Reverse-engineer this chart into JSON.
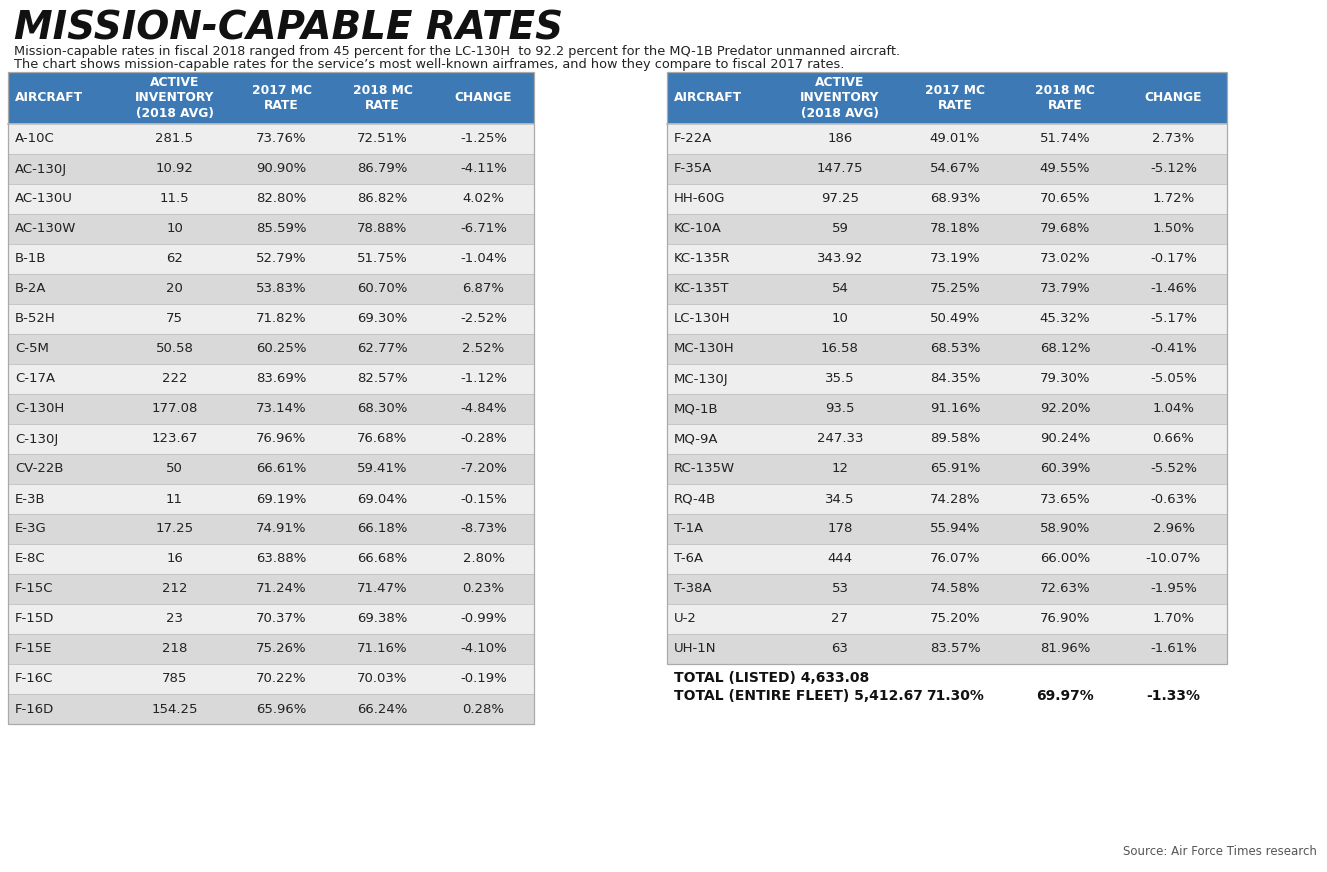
{
  "title": "MISSION-CAPABLE RATES",
  "subtitle_line1": "Mission-capable rates in fiscal 2018 ranged from 45 percent for the LC-130H  to 92.2 percent for the MQ-1B Predator unmanned aircraft.",
  "subtitle_line2": "The chart shows mission-capable rates for the service’s most well-known airframes, and how they compare to fiscal 2017 rates.",
  "source": "Source: Air Force Times research",
  "header": [
    "AIRCRAFT",
    "ACTIVE\nINVENTORY\n(2018 AVG)",
    "2017 MC\nRATE",
    "2018 MC\nRATE",
    "CHANGE"
  ],
  "left_data": [
    [
      "A-10C",
      "281.5",
      "73.76%",
      "72.51%",
      "-1.25%"
    ],
    [
      "AC-130J",
      "10.92",
      "90.90%",
      "86.79%",
      "-4.11%"
    ],
    [
      "AC-130U",
      "11.5",
      "82.80%",
      "86.82%",
      "4.02%"
    ],
    [
      "AC-130W",
      "10",
      "85.59%",
      "78.88%",
      "-6.71%"
    ],
    [
      "B-1B",
      "62",
      "52.79%",
      "51.75%",
      "-1.04%"
    ],
    [
      "B-2A",
      "20",
      "53.83%",
      "60.70%",
      "6.87%"
    ],
    [
      "B-52H",
      "75",
      "71.82%",
      "69.30%",
      "-2.52%"
    ],
    [
      "C-5M",
      "50.58",
      "60.25%",
      "62.77%",
      "2.52%"
    ],
    [
      "C-17A",
      "222",
      "83.69%",
      "82.57%",
      "-1.12%"
    ],
    [
      "C-130H",
      "177.08",
      "73.14%",
      "68.30%",
      "-4.84%"
    ],
    [
      "C-130J",
      "123.67",
      "76.96%",
      "76.68%",
      "-0.28%"
    ],
    [
      "CV-22B",
      "50",
      "66.61%",
      "59.41%",
      "-7.20%"
    ],
    [
      "E-3B",
      "11",
      "69.19%",
      "69.04%",
      "-0.15%"
    ],
    [
      "E-3G",
      "17.25",
      "74.91%",
      "66.18%",
      "-8.73%"
    ],
    [
      "E-8C",
      "16",
      "63.88%",
      "66.68%",
      "2.80%"
    ],
    [
      "F-15C",
      "212",
      "71.24%",
      "71.47%",
      "0.23%"
    ],
    [
      "F-15D",
      "23",
      "70.37%",
      "69.38%",
      "-0.99%"
    ],
    [
      "F-15E",
      "218",
      "75.26%",
      "71.16%",
      "-4.10%"
    ],
    [
      "F-16C",
      "785",
      "70.22%",
      "70.03%",
      "-0.19%"
    ],
    [
      "F-16D",
      "154.25",
      "65.96%",
      "66.24%",
      "0.28%"
    ]
  ],
  "right_data": [
    [
      "F-22A",
      "186",
      "49.01%",
      "51.74%",
      "2.73%"
    ],
    [
      "F-35A",
      "147.75",
      "54.67%",
      "49.55%",
      "-5.12%"
    ],
    [
      "HH-60G",
      "97.25",
      "68.93%",
      "70.65%",
      "1.72%"
    ],
    [
      "KC-10A",
      "59",
      "78.18%",
      "79.68%",
      "1.50%"
    ],
    [
      "KC-135R",
      "343.92",
      "73.19%",
      "73.02%",
      "-0.17%"
    ],
    [
      "KC-135T",
      "54",
      "75.25%",
      "73.79%",
      "-1.46%"
    ],
    [
      "LC-130H",
      "10",
      "50.49%",
      "45.32%",
      "-5.17%"
    ],
    [
      "MC-130H",
      "16.58",
      "68.53%",
      "68.12%",
      "-0.41%"
    ],
    [
      "MC-130J",
      "35.5",
      "84.35%",
      "79.30%",
      "-5.05%"
    ],
    [
      "MQ-1B",
      "93.5",
      "91.16%",
      "92.20%",
      "1.04%"
    ],
    [
      "MQ-9A",
      "247.33",
      "89.58%",
      "90.24%",
      "0.66%"
    ],
    [
      "RC-135W",
      "12",
      "65.91%",
      "60.39%",
      "-5.52%"
    ],
    [
      "RQ-4B",
      "34.5",
      "74.28%",
      "73.65%",
      "-0.63%"
    ],
    [
      "T-1A",
      "178",
      "55.94%",
      "58.90%",
      "2.96%"
    ],
    [
      "T-6A",
      "444",
      "76.07%",
      "66.00%",
      "-10.07%"
    ],
    [
      "T-38A",
      "53",
      "74.58%",
      "72.63%",
      "-1.95%"
    ],
    [
      "U-2",
      "27",
      "75.20%",
      "76.90%",
      "1.70%"
    ],
    [
      "UH-1N",
      "63",
      "83.57%",
      "81.96%",
      "-1.61%"
    ]
  ],
  "total_listed": "TOTAL (LISTED) 4,633.08",
  "total_fleet_label": "TOTAL (ENTIRE FLEET) 5,412.67",
  "total_fleet_2017": "71.30%",
  "total_fleet_2018": "69.97%",
  "total_fleet_change": "-1.33%",
  "header_bg": "#3d7ab5",
  "header_text": "#ffffff",
  "row_alt_bg": "#d9d9d9",
  "row_norm_bg": "#eeeeee",
  "body_text_color": "#222222",
  "bg_color": "#ffffff",
  "gap_color": "#ffffff"
}
